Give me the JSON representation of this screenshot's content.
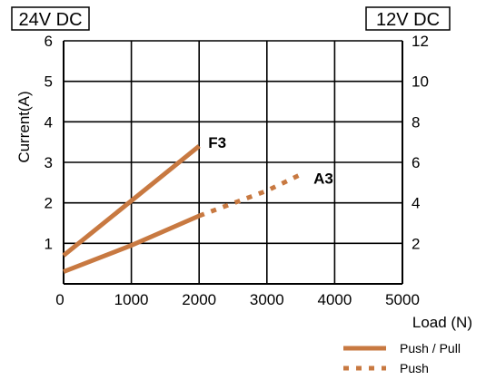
{
  "chart_data": {
    "type": "line",
    "xlabel": "Load (N)",
    "ylabel": "Current(A)",
    "left_axis_header": "24V DC",
    "right_axis_header": "12V DC",
    "xlim": [
      0,
      5000
    ],
    "ylim": [
      0,
      6
    ],
    "y2lim": [
      0,
      12
    ],
    "x_ticks": [
      0,
      1000,
      2000,
      3000,
      4000,
      5000
    ],
    "x_tick_labels": [
      "0",
      "1000",
      "2000",
      "3000",
      "4000",
      "5000"
    ],
    "y_ticks": [
      1,
      2,
      3,
      4,
      5,
      6
    ],
    "y_tick_labels": [
      "1",
      "2",
      "3",
      "4",
      "5",
      "6"
    ],
    "y2_ticks": [
      2,
      4,
      6,
      8,
      10,
      12
    ],
    "y2_tick_labels": [
      "2",
      "4",
      "6",
      "8",
      "10",
      "12"
    ],
    "grid": true,
    "line_color": "#c87941",
    "series": [
      {
        "label": "F3",
        "style": "solid",
        "points": [
          [
            0,
            0.7
          ],
          [
            2000,
            3.4
          ]
        ]
      },
      {
        "label": "A3",
        "style": "solid",
        "points": [
          [
            0,
            0.3
          ],
          [
            1000,
            0.95
          ],
          [
            2000,
            1.68
          ]
        ]
      },
      {
        "label": "A3",
        "style": "dotted",
        "points": [
          [
            2000,
            1.68
          ],
          [
            3000,
            2.3
          ],
          [
            3500,
            2.7
          ]
        ]
      }
    ],
    "legend": {
      "placement": "bottom-right",
      "entries": [
        {
          "label": "Push / Pull",
          "style": "solid"
        },
        {
          "label": "Push",
          "style": "dotted"
        }
      ]
    }
  }
}
